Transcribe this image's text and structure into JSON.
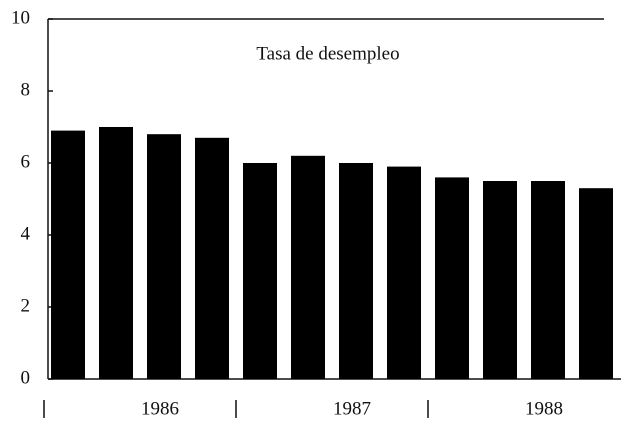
{
  "chart_data": {
    "type": "bar",
    "title": "Tasa de desempleo",
    "categories": [
      null,
      null,
      null,
      null,
      null,
      null,
      null,
      null,
      null,
      null,
      null,
      null
    ],
    "groups": [
      "1986",
      "1987",
      "1988"
    ],
    "values": [
      6.9,
      7.0,
      6.8,
      6.7,
      6.0,
      6.2,
      6.0,
      5.9,
      5.6,
      5.5,
      5.5,
      5.3
    ],
    "color": "#000000",
    "ylim": [
      0,
      10
    ],
    "yticks": [
      0,
      2,
      4,
      6,
      8,
      10
    ],
    "grid": false
  }
}
